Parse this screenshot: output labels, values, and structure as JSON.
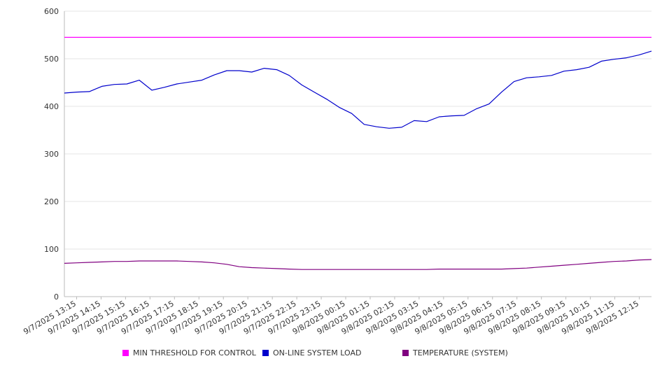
{
  "chart_data": {
    "type": "line",
    "title": "",
    "xlabel": "",
    "ylabel": "",
    "ylim": [
      0,
      600
    ],
    "yticks": [
      0,
      100,
      200,
      300,
      400,
      500,
      600
    ],
    "grid": true,
    "legend_position": "bottom",
    "x_tick_labels": [
      "9/7/2025 13:15",
      "9/7/2025 14:15",
      "9/7/2025 15:15",
      "9/7/2025 16:15",
      "9/7/2025 17:15",
      "9/7/2025 18:15",
      "9/7/2025 19:15",
      "9/7/2025 20:15",
      "9/7/2025 21:15",
      "9/7/2025 22:15",
      "9/7/2025 23:15",
      "9/8/2025 00:15",
      "9/8/2025 01:15",
      "9/8/2025 02:15",
      "9/8/2025 03:15",
      "9/8/2025 04:15",
      "9/8/2025 05:15",
      "9/8/2025 06:15",
      "9/8/2025 07:15",
      "9/8/2025 08:15",
      "9/8/2025 09:15",
      "9/8/2025 10:15",
      "9/8/2025 11:15",
      "9/8/2025 12:15"
    ],
    "x": [
      "9/7/2025 13:15",
      "9/7/2025 13:45",
      "9/7/2025 14:15",
      "9/7/2025 14:45",
      "9/7/2025 15:15",
      "9/7/2025 15:45",
      "9/7/2025 16:15",
      "9/7/2025 16:45",
      "9/7/2025 17:15",
      "9/7/2025 17:45",
      "9/7/2025 18:15",
      "9/7/2025 18:45",
      "9/7/2025 19:15",
      "9/7/2025 19:45",
      "9/7/2025 20:15",
      "9/7/2025 20:45",
      "9/7/2025 21:15",
      "9/7/2025 21:45",
      "9/7/2025 22:15",
      "9/7/2025 22:45",
      "9/7/2025 23:15",
      "9/7/2025 23:45",
      "9/8/2025 00:15",
      "9/8/2025 00:45",
      "9/8/2025 01:15",
      "9/8/2025 01:45",
      "9/8/2025 02:15",
      "9/8/2025 02:45",
      "9/8/2025 03:15",
      "9/8/2025 03:45",
      "9/8/2025 04:15",
      "9/8/2025 04:45",
      "9/8/2025 05:15",
      "9/8/2025 05:45",
      "9/8/2025 06:15",
      "9/8/2025 06:45",
      "9/8/2025 07:15",
      "9/8/2025 07:45",
      "9/8/2025 08:15",
      "9/8/2025 08:45",
      "9/8/2025 09:15",
      "9/8/2025 09:45",
      "9/8/2025 10:15",
      "9/8/2025 10:45",
      "9/8/2025 11:15",
      "9/8/2025 11:45",
      "9/8/2025 12:15",
      "9/8/2025 12:45"
    ],
    "series": [
      {
        "name": "MIN THRESHOLD FOR CONTROL",
        "color": "#ff00ff",
        "values": [
          545,
          545,
          545,
          545,
          545,
          545,
          545,
          545,
          545,
          545,
          545,
          545,
          545,
          545,
          545,
          545,
          545,
          545,
          545,
          545,
          545,
          545,
          545,
          545,
          545,
          545,
          545,
          545,
          545,
          545,
          545,
          545,
          545,
          545,
          545,
          545,
          545,
          545,
          545,
          545,
          545,
          545,
          545,
          545,
          545,
          545,
          545,
          545
        ]
      },
      {
        "name": "ON-LINE SYSTEM LOAD",
        "color": "#0000cc",
        "values": [
          428,
          430,
          431,
          442,
          446,
          447,
          455,
          434,
          440,
          447,
          451,
          455,
          466,
          475,
          475,
          472,
          480,
          477,
          465,
          445,
          430,
          415,
          398,
          385,
          362,
          357,
          354,
          356,
          370,
          368,
          378,
          380,
          381,
          395,
          405,
          430,
          452,
          460,
          462,
          465,
          474,
          477,
          482,
          495,
          499,
          502,
          508,
          516
        ]
      },
      {
        "name": "TEMPERATURE (SYSTEM)",
        "color": "#800080",
        "values": [
          70,
          71,
          72,
          73,
          74,
          74,
          75,
          75,
          75,
          75,
          74,
          73,
          71,
          68,
          63,
          61,
          60,
          59,
          58,
          57,
          57,
          57,
          57,
          57,
          57,
          57,
          57,
          57,
          57,
          57,
          58,
          58,
          58,
          58,
          58,
          58,
          59,
          60,
          62,
          64,
          66,
          68,
          70,
          72,
          74,
          75,
          77,
          78
        ]
      }
    ]
  }
}
